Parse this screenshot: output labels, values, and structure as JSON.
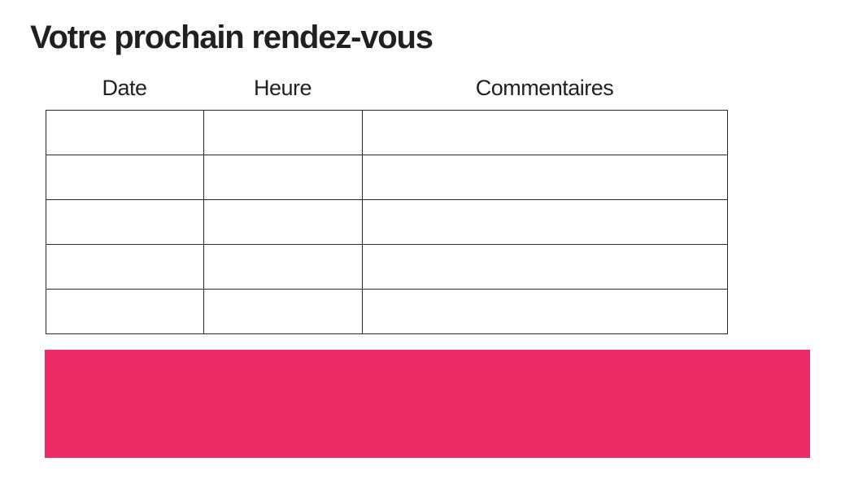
{
  "page": {
    "title": "Votre prochain rendez-vous"
  },
  "table": {
    "columns": [
      {
        "label": "Date"
      },
      {
        "label": "Heure"
      },
      {
        "label": "Commentaires"
      }
    ],
    "rows": [
      [
        "",
        "",
        ""
      ],
      [
        "",
        "",
        ""
      ],
      [
        "",
        "",
        ""
      ],
      [
        "",
        "",
        ""
      ],
      [
        "",
        "",
        ""
      ]
    ]
  },
  "banner": {
    "label": "",
    "color": "#ed2b67"
  },
  "colors": {
    "accent": "#ed2b67",
    "text": "#231f20",
    "table_border": "#2a2a2a"
  }
}
